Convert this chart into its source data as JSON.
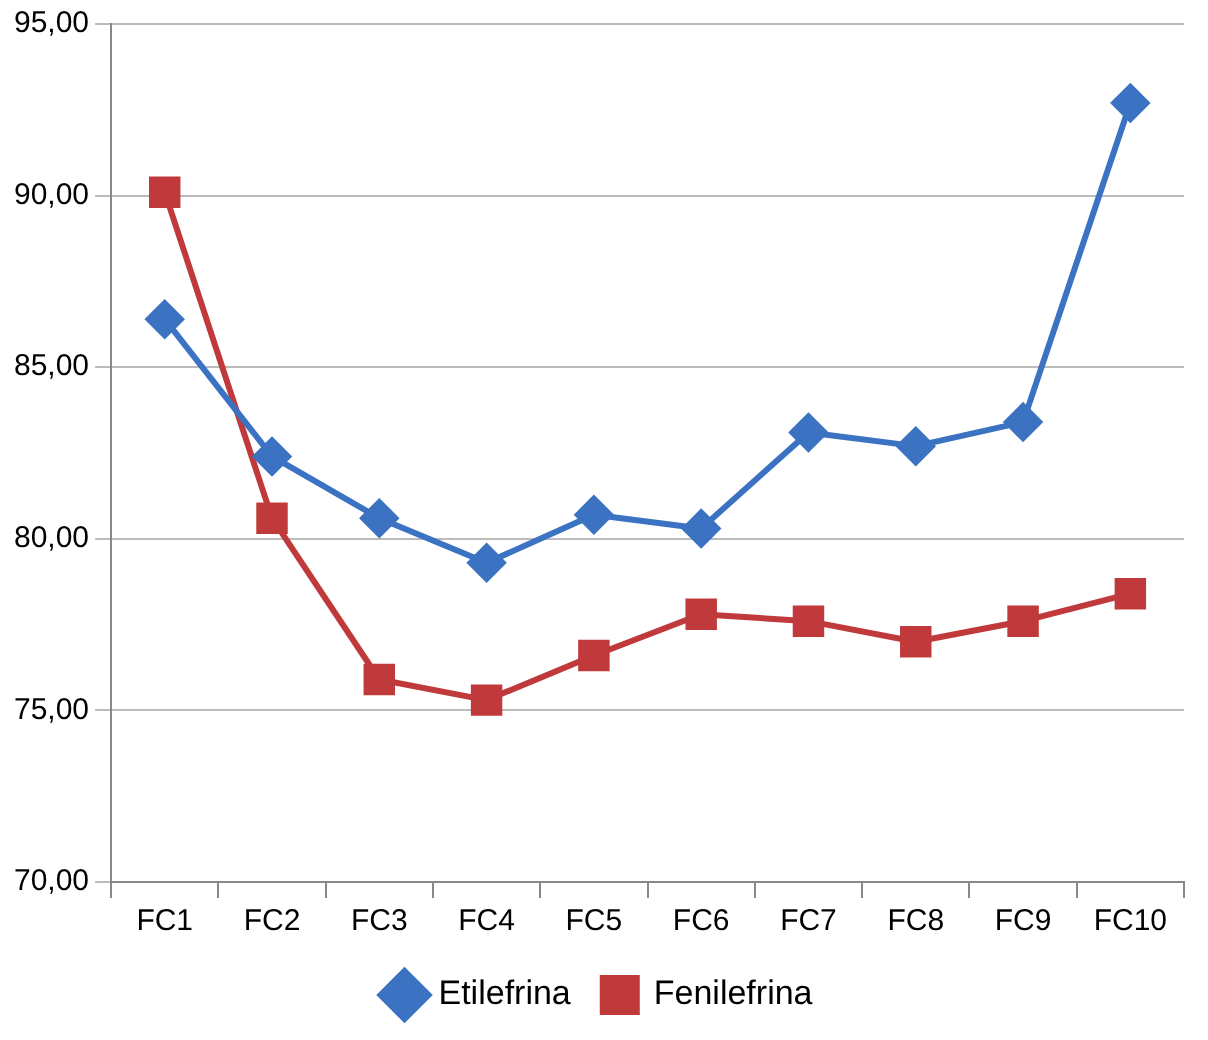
{
  "chart_data": {
    "type": "line",
    "categories": [
      "FC1",
      "FC2",
      "FC3",
      "FC4",
      "FC5",
      "FC6",
      "FC7",
      "FC8",
      "FC9",
      "FC10"
    ],
    "series": [
      {
        "name": "Etilefrina",
        "color": "#3b73c2",
        "marker": "diamond",
        "values": [
          86.4,
          82.4,
          80.6,
          79.3,
          80.7,
          80.3,
          83.1,
          82.7,
          83.4,
          92.7
        ]
      },
      {
        "name": "Fenilefrina",
        "color": "#c0393b",
        "marker": "square",
        "values": [
          90.1,
          80.6,
          75.9,
          75.3,
          76.6,
          77.8,
          77.6,
          77.0,
          77.6,
          78.4
        ]
      }
    ],
    "ylim": [
      70,
      95
    ],
    "yticks": [
      {
        "value": 70,
        "label": "70,00"
      },
      {
        "value": 75,
        "label": "75,00"
      },
      {
        "value": 80,
        "label": "80,00"
      },
      {
        "value": 85,
        "label": "85,00"
      },
      {
        "value": 90,
        "label": "90,00"
      },
      {
        "value": 95,
        "label": "95,00"
      }
    ],
    "grid": "y",
    "legend": "bottom",
    "line_style": "solid"
  }
}
